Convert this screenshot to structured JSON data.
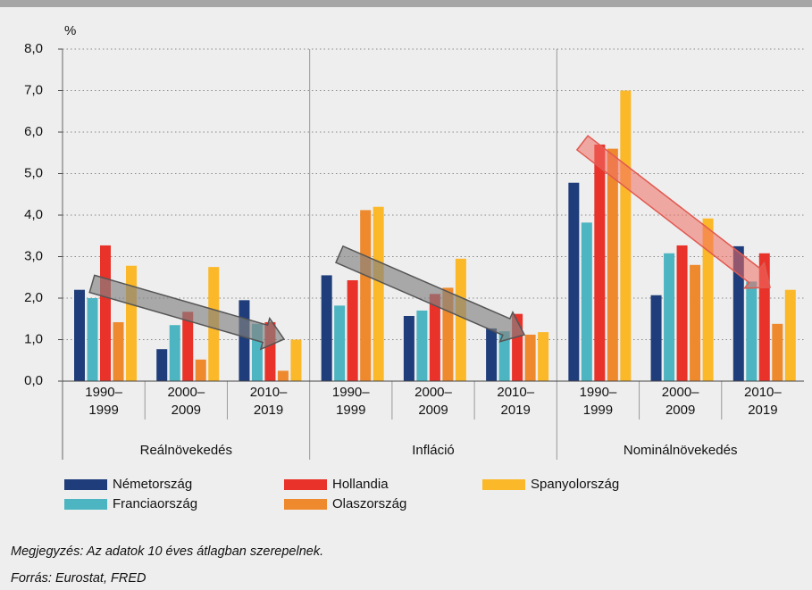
{
  "chart_data": {
    "type": "bar",
    "y_unit": "%",
    "groups": [
      "Reálnövekedés",
      "Infláció",
      "Nominálnövekedés"
    ],
    "categories": [
      "1990–1999",
      "2000–2009",
      "2010–2019",
      "1990–1999",
      "2000–2009",
      "2010–2019",
      "1990–1999",
      "2000–2009",
      "2010–2019"
    ],
    "series": [
      {
        "name": "Németország",
        "color": "#1f3d7a",
        "values": [
          2.2,
          0.77,
          1.95,
          2.55,
          1.57,
          1.27,
          4.78,
          2.07,
          3.25
        ]
      },
      {
        "name": "Franciaország",
        "color": "#4db5c1",
        "values": [
          2.0,
          1.35,
          1.38,
          1.82,
          1.7,
          1.2,
          3.82,
          3.08,
          2.4
        ]
      },
      {
        "name": "Hollandia",
        "color": "#e8322a",
        "values": [
          3.27,
          1.67,
          1.42,
          2.43,
          2.1,
          1.62,
          5.7,
          3.27,
          3.08
        ]
      },
      {
        "name": "Olaszország",
        "color": "#ee8a2d",
        "values": [
          1.42,
          0.52,
          0.25,
          4.12,
          2.25,
          1.12,
          5.6,
          2.8,
          1.38
        ]
      },
      {
        "name": "Spanyolország",
        "color": "#fbb829",
        "values": [
          2.78,
          2.75,
          1.0,
          4.2,
          2.95,
          1.18,
          7.0,
          3.92,
          2.2
        ]
      }
    ],
    "ylim": [
      0,
      8
    ],
    "yticks": [
      {
        "value": 0,
        "label": "0,0"
      },
      {
        "value": 1,
        "label": "1,0"
      },
      {
        "value": 2,
        "label": "2,0"
      },
      {
        "value": 3,
        "label": "3,0"
      },
      {
        "value": 4,
        "label": "4,0"
      },
      {
        "value": 5,
        "label": "5,0"
      },
      {
        "value": 6,
        "label": "6,0"
      },
      {
        "value": 7,
        "label": "7,0"
      },
      {
        "value": 8,
        "label": "8,0"
      }
    ],
    "grid": true
  },
  "notes": [
    "Megjegyzés: Az adatok 10 éves átlagban szerepelnek.",
    "Forrás: Eurostat, FRED"
  ]
}
